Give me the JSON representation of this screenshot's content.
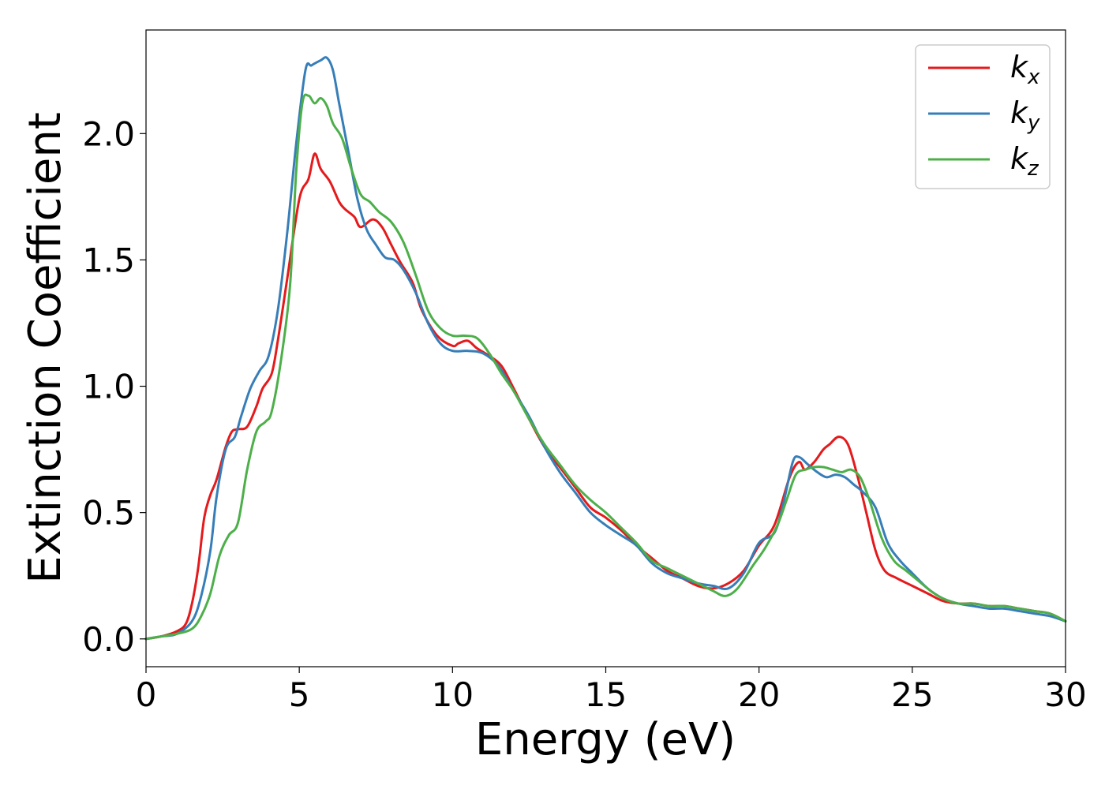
{
  "chart_data": {
    "type": "line",
    "xlabel": "Energy (eV)",
    "ylabel": "Extinction Coefficient",
    "xlim": [
      0,
      30
    ],
    "ylim": [
      -0.11,
      2.41
    ],
    "xticks": [
      "0",
      "5",
      "10",
      "15",
      "20",
      "25",
      "30"
    ],
    "yticks": [
      "0.0",
      "0.5",
      "1.0",
      "1.5",
      "2.0"
    ],
    "grid": false,
    "legend_position": "top-right",
    "series": [
      {
        "name": "k",
        "subscript": "x",
        "color": "#e41a1c",
        "x": [
          0,
          0.5,
          1.0,
          1.3,
          1.5,
          1.7,
          1.9,
          2.1,
          2.3,
          2.6,
          2.8,
          3.0,
          3.3,
          3.6,
          3.8,
          4.1,
          4.3,
          4.6,
          5.0,
          5.3,
          5.5,
          5.7,
          6.0,
          6.3,
          6.5,
          6.8,
          7.0,
          7.4,
          7.7,
          8.0,
          8.3,
          8.7,
          9.0,
          9.5,
          10.0,
          10.2,
          10.5,
          10.8,
          11.2,
          11.6,
          12.0,
          12.5,
          13.0,
          13.5,
          14.0,
          14.5,
          15.0,
          15.5,
          16.0,
          16.5,
          17.0,
          17.5,
          18.0,
          18.5,
          19.0,
          19.5,
          20.0,
          20.5,
          21.0,
          21.3,
          21.5,
          21.8,
          22.1,
          22.3,
          22.6,
          22.9,
          23.2,
          23.5,
          23.8,
          24.1,
          24.5,
          25.0,
          25.5,
          26.0,
          26.5,
          27.0,
          27.5,
          28.0,
          28.5,
          29.0,
          29.5,
          30.0
        ],
        "y": [
          0.0,
          0.01,
          0.03,
          0.06,
          0.14,
          0.28,
          0.48,
          0.57,
          0.63,
          0.76,
          0.82,
          0.83,
          0.84,
          0.92,
          0.99,
          1.05,
          1.18,
          1.42,
          1.74,
          1.82,
          1.92,
          1.86,
          1.81,
          1.73,
          1.7,
          1.67,
          1.63,
          1.66,
          1.63,
          1.56,
          1.49,
          1.41,
          1.3,
          1.2,
          1.16,
          1.17,
          1.18,
          1.15,
          1.12,
          1.08,
          0.99,
          0.87,
          0.76,
          0.68,
          0.6,
          0.52,
          0.48,
          0.43,
          0.37,
          0.32,
          0.27,
          0.24,
          0.21,
          0.2,
          0.22,
          0.27,
          0.37,
          0.45,
          0.64,
          0.7,
          0.67,
          0.7,
          0.75,
          0.77,
          0.8,
          0.77,
          0.65,
          0.5,
          0.35,
          0.27,
          0.24,
          0.21,
          0.18,
          0.15,
          0.14,
          0.14,
          0.13,
          0.13,
          0.12,
          0.11,
          0.1,
          0.07
        ]
      },
      {
        "name": "k",
        "subscript": "y",
        "color": "#377eb8",
        "x": [
          0,
          0.5,
          1.0,
          1.5,
          1.8,
          2.1,
          2.3,
          2.6,
          2.9,
          3.1,
          3.4,
          3.7,
          4.0,
          4.3,
          4.6,
          4.9,
          5.2,
          5.4,
          5.7,
          5.9,
          6.1,
          6.3,
          6.6,
          6.9,
          7.2,
          7.5,
          7.8,
          8.1,
          8.4,
          8.8,
          9.2,
          9.6,
          10.0,
          10.5,
          11.0,
          11.5,
          12.0,
          12.5,
          13.0,
          13.5,
          14.0,
          14.5,
          15.0,
          15.5,
          16.0,
          16.5,
          17.0,
          17.5,
          18.0,
          18.5,
          19.0,
          19.5,
          20.0,
          20.5,
          20.8,
          21.1,
          21.3,
          21.6,
          21.9,
          22.2,
          22.5,
          22.8,
          23.1,
          23.4,
          23.8,
          24.2,
          24.6,
          25.0,
          25.5,
          26.0,
          26.5,
          27.0,
          27.5,
          28.0,
          28.5,
          29.0,
          29.5,
          30.0
        ],
        "y": [
          0.0,
          0.01,
          0.02,
          0.07,
          0.17,
          0.35,
          0.56,
          0.75,
          0.8,
          0.88,
          0.99,
          1.06,
          1.12,
          1.3,
          1.6,
          1.96,
          2.25,
          2.27,
          2.29,
          2.3,
          2.25,
          2.12,
          1.93,
          1.74,
          1.62,
          1.56,
          1.51,
          1.5,
          1.46,
          1.37,
          1.25,
          1.17,
          1.14,
          1.14,
          1.13,
          1.08,
          0.98,
          0.88,
          0.76,
          0.66,
          0.58,
          0.5,
          0.45,
          0.41,
          0.37,
          0.3,
          0.26,
          0.24,
          0.22,
          0.21,
          0.2,
          0.26,
          0.38,
          0.42,
          0.54,
          0.7,
          0.72,
          0.69,
          0.66,
          0.64,
          0.65,
          0.64,
          0.61,
          0.58,
          0.52,
          0.38,
          0.31,
          0.26,
          0.2,
          0.16,
          0.14,
          0.13,
          0.12,
          0.12,
          0.11,
          0.1,
          0.09,
          0.07
        ]
      },
      {
        "name": "k",
        "subscript": "z",
        "color": "#4daf4a",
        "x": [
          0,
          0.5,
          1.0,
          1.5,
          1.8,
          2.1,
          2.4,
          2.7,
          3.0,
          3.3,
          3.6,
          3.9,
          4.1,
          4.4,
          4.7,
          4.9,
          5.1,
          5.3,
          5.5,
          5.7,
          5.9,
          6.1,
          6.4,
          6.7,
          7.0,
          7.3,
          7.6,
          8.0,
          8.4,
          8.8,
          9.2,
          9.6,
          10.0,
          10.4,
          10.8,
          11.2,
          11.6,
          12.0,
          12.5,
          13.0,
          13.5,
          14.0,
          14.5,
          15.0,
          15.5,
          16.0,
          16.5,
          17.0,
          17.5,
          18.0,
          18.5,
          18.9,
          19.3,
          19.8,
          20.2,
          20.6,
          20.9,
          21.2,
          21.5,
          21.8,
          22.1,
          22.4,
          22.7,
          23.0,
          23.3,
          23.6,
          24.0,
          24.4,
          24.8,
          25.2,
          25.6,
          26.0,
          26.5,
          27.0,
          27.5,
          28.0,
          28.5,
          29.0,
          29.5,
          30.0
        ],
        "y": [
          0.0,
          0.01,
          0.02,
          0.04,
          0.09,
          0.18,
          0.33,
          0.41,
          0.46,
          0.67,
          0.82,
          0.86,
          0.9,
          1.1,
          1.4,
          1.85,
          2.12,
          2.15,
          2.12,
          2.14,
          2.11,
          2.04,
          1.98,
          1.86,
          1.76,
          1.73,
          1.69,
          1.65,
          1.57,
          1.44,
          1.3,
          1.23,
          1.2,
          1.2,
          1.19,
          1.13,
          1.05,
          0.98,
          0.87,
          0.77,
          0.69,
          0.61,
          0.55,
          0.5,
          0.44,
          0.38,
          0.31,
          0.28,
          0.25,
          0.22,
          0.19,
          0.17,
          0.2,
          0.29,
          0.36,
          0.45,
          0.55,
          0.65,
          0.67,
          0.68,
          0.68,
          0.67,
          0.66,
          0.67,
          0.64,
          0.55,
          0.4,
          0.31,
          0.27,
          0.23,
          0.19,
          0.16,
          0.14,
          0.14,
          0.13,
          0.13,
          0.12,
          0.11,
          0.1,
          0.07
        ]
      }
    ]
  }
}
